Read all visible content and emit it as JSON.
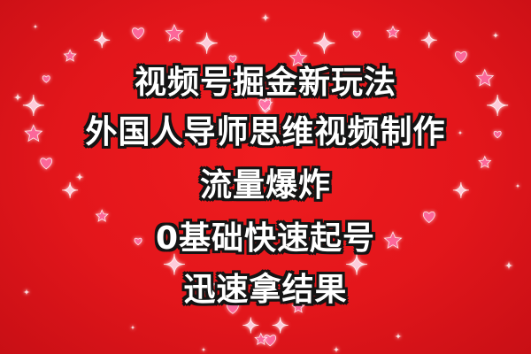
{
  "poster": {
    "line1": "视频号掘金新玩法",
    "line2": "外国人导师思维视频制作",
    "line3": "流量爆炸",
    "line4": "0基础快速起号",
    "line5": "迅速拿结果"
  },
  "colors": {
    "background": "#e0141b",
    "text": "#ffffff",
    "outline": "#141414",
    "decoration_pink": "#ff6fa8",
    "decoration_glow": "#ffd6e6"
  },
  "decoration": {
    "shape": "heart-outline-of-sparkles-stars-hearts"
  }
}
